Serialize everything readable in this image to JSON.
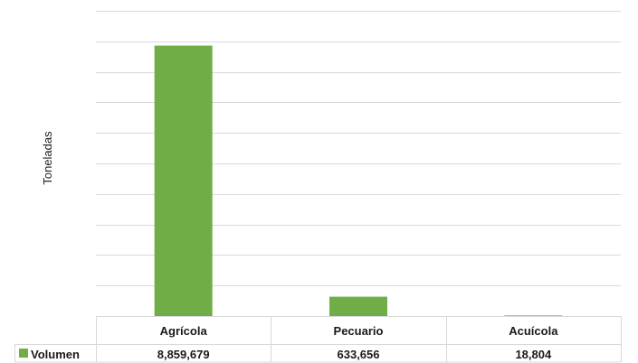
{
  "chart_data": {
    "type": "bar",
    "ylabel": "Toneladas",
    "categories": [
      "Agrícola",
      "Pecuario",
      "Acuícola"
    ],
    "value_labels": [
      "8,859,679",
      "633,656",
      "18,804"
    ],
    "series": [
      {
        "name": "Volumen",
        "values": [
          8859679,
          633656,
          18804
        ],
        "color": "#70ad47"
      }
    ],
    "ylim": [
      0,
      10000000
    ],
    "grid": true,
    "legend": "data-table-left",
    "data_table": true
  }
}
